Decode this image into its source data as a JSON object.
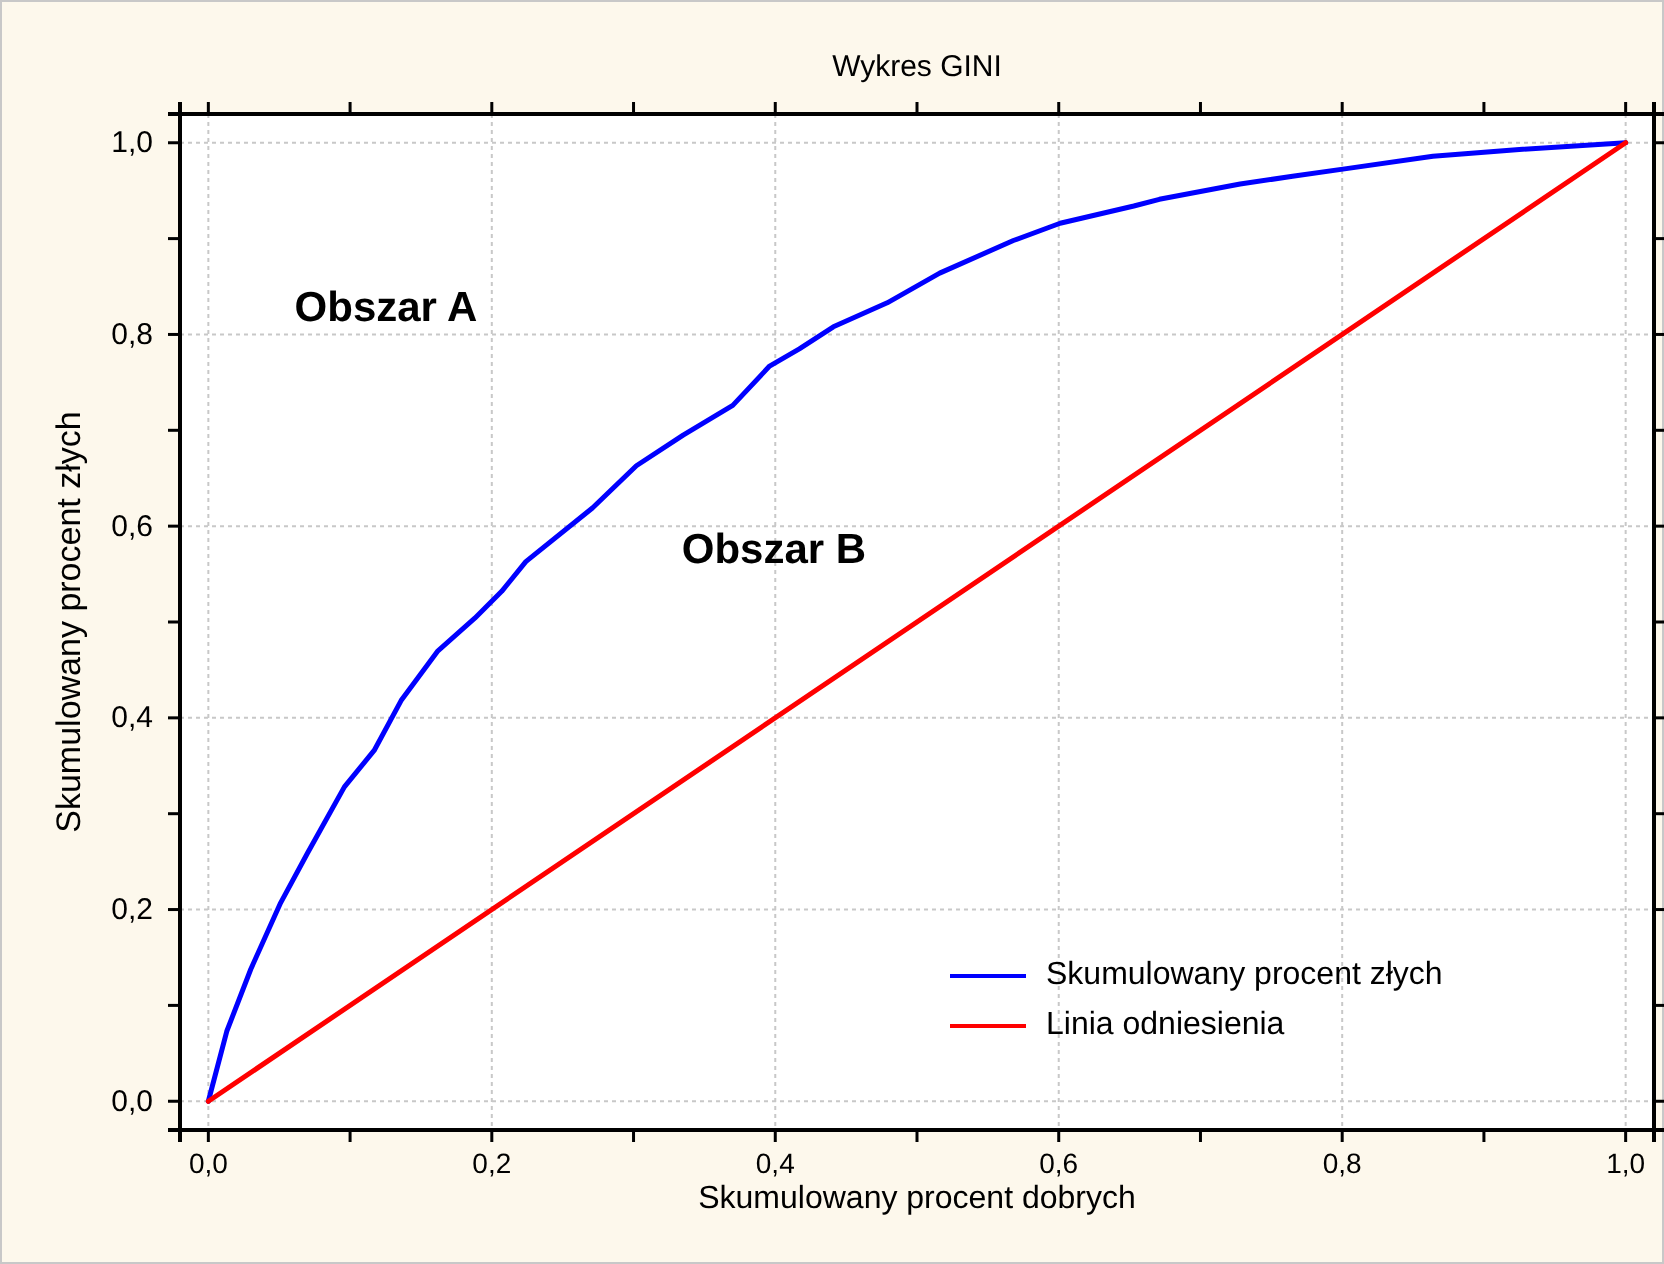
{
  "chart_data": {
    "type": "line",
    "title": "Wykres GINI",
    "xlabel": "Skumulowany procent dobrych",
    "ylabel": "Skumulowany procent złych",
    "xlim": [
      -0.02,
      1.02
    ],
    "ylim": [
      -0.03,
      1.03
    ],
    "xticks": [
      {
        "value": 0,
        "label": "0,0"
      },
      {
        "value": 0.1,
        "label": null
      },
      {
        "value": 0.2,
        "label": "0,2"
      },
      {
        "value": 0.3,
        "label": null
      },
      {
        "value": 0.4,
        "label": "0,4"
      },
      {
        "value": 0.5,
        "label": null
      },
      {
        "value": 0.6,
        "label": "0,6"
      },
      {
        "value": 0.7,
        "label": null
      },
      {
        "value": 0.8,
        "label": "0,8"
      },
      {
        "value": 0.9,
        "label": null
      },
      {
        "value": 1,
        "label": "1,0"
      }
    ],
    "yticks": [
      {
        "value": 0,
        "label": "0,0"
      },
      {
        "value": 0.1,
        "label": null
      },
      {
        "value": 0.2,
        "label": "0,2"
      },
      {
        "value": 0.3,
        "label": null
      },
      {
        "value": 0.4,
        "label": "0,4"
      },
      {
        "value": 0.5,
        "label": null
      },
      {
        "value": 0.6,
        "label": "0,6"
      },
      {
        "value": 0.7,
        "label": null
      },
      {
        "value": 0.8,
        "label": "0,8"
      },
      {
        "value": 0.9,
        "label": null
      },
      {
        "value": 1,
        "label": "1,0"
      }
    ],
    "grid": true,
    "legend": "bottom right",
    "marker": "none",
    "line_style": "solid",
    "series": [
      {
        "name": "Skumulowany procent złych",
        "color": "#0000ff",
        "x": [
          0,
          0.013,
          0.03,
          0.051,
          0.07,
          0.096,
          0.117,
          0.136,
          0.162,
          0.188,
          0.207,
          0.224,
          0.271,
          0.302,
          0.335,
          0.37,
          0.396,
          0.417,
          0.441,
          0.479,
          0.516,
          0.568,
          0.601,
          0.653,
          0.671,
          0.728,
          0.765,
          0.803,
          0.864,
          0.925,
          1
        ],
        "values": [
          0,
          0.073,
          0.138,
          0.207,
          0.259,
          0.328,
          0.366,
          0.418,
          0.47,
          0.504,
          0.532,
          0.563,
          0.619,
          0.663,
          0.695,
          0.726,
          0.767,
          0.785,
          0.808,
          0.833,
          0.864,
          0.898,
          0.916,
          0.934,
          0.941,
          0.957,
          0.965,
          0.973,
          0.986,
          0.993,
          1
        ]
      },
      {
        "name": "Linia odniesienia",
        "color": "#ff0000",
        "x": [
          0,
          1
        ],
        "values": [
          0,
          1
        ]
      }
    ],
    "annotations": [
      "Obszar A",
      "Obszar B"
    ]
  }
}
